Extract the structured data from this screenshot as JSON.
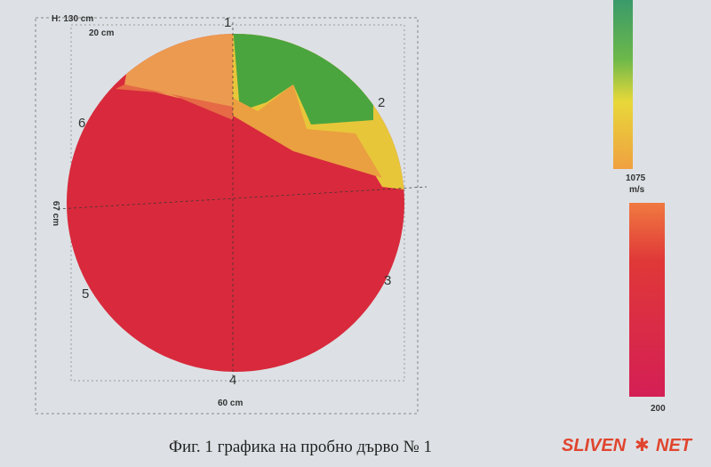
{
  "figure": {
    "height_label": "H: 130 cm",
    "scale_label": "20 cm",
    "width_label": "60 cm",
    "diameter_label": "67 cm",
    "points": [
      "1",
      "2",
      "3",
      "4",
      "5",
      "6"
    ],
    "scale_top": "1075",
    "scale_unit": "m/s",
    "scale_bottom": "200",
    "caption": "Фиг. 1 графика на пробно дърво № 1"
  },
  "watermark": {
    "left": "SLIVEN",
    "right": "NET"
  }
}
